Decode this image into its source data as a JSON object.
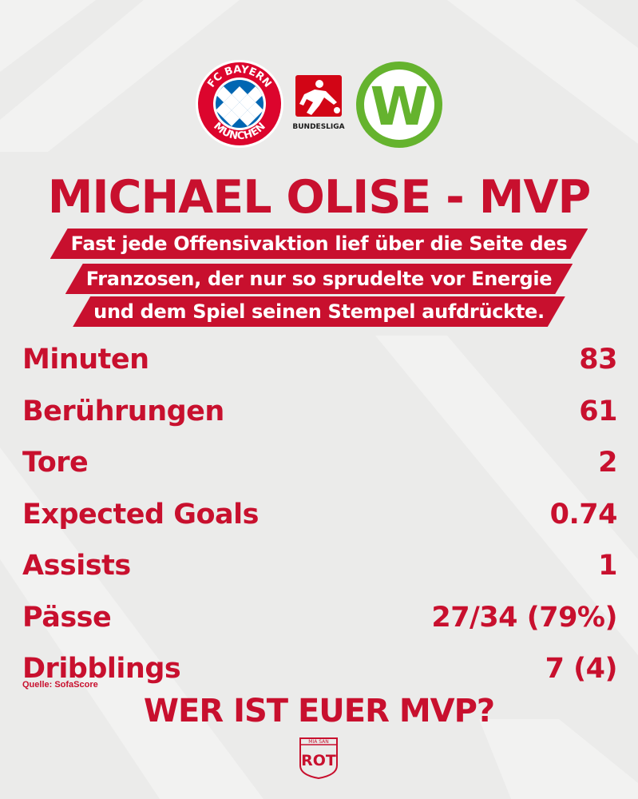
{
  "logos": {
    "home": {
      "name": "FC Bayern München",
      "text_top": "FC BAYERN",
      "text_bottom": "MÜNCHEN",
      "color": "#dc052d",
      "accent": "#0066b2"
    },
    "league": {
      "caption": "BUNDESLIGA",
      "color": "#d20515"
    },
    "away": {
      "letter": "W",
      "color": "#65b32e"
    }
  },
  "title": "MICHAEL OLISE - MVP",
  "subtitle_lines": [
    "Fast jede Offensivaktion lief über die Seite des",
    "Franzosen, der nur so sprudelte vor Energie",
    "und dem Spiel seinen Stempel aufdrückte."
  ],
  "stats": [
    {
      "label": "Minuten",
      "value": "83"
    },
    {
      "label": "Berührungen",
      "value": "61"
    },
    {
      "label": "Tore",
      "value": "2"
    },
    {
      "label": "Expected Goals",
      "value": "0.74"
    },
    {
      "label": "Assists",
      "value": "1"
    },
    {
      "label": "Pässe",
      "value": "27/34 (79%)"
    },
    {
      "label": "Dribblings",
      "value": "7 (4)"
    }
  ],
  "source": "Quelle: SofaScore",
  "cta": "WER IST EUER MVP?",
  "footer_logo": {
    "top_text": "MIA SAN",
    "main_text": "ROT"
  },
  "colors": {
    "accent": "#c8102e",
    "background": "#ebebea",
    "banner_text": "#ffffff"
  }
}
